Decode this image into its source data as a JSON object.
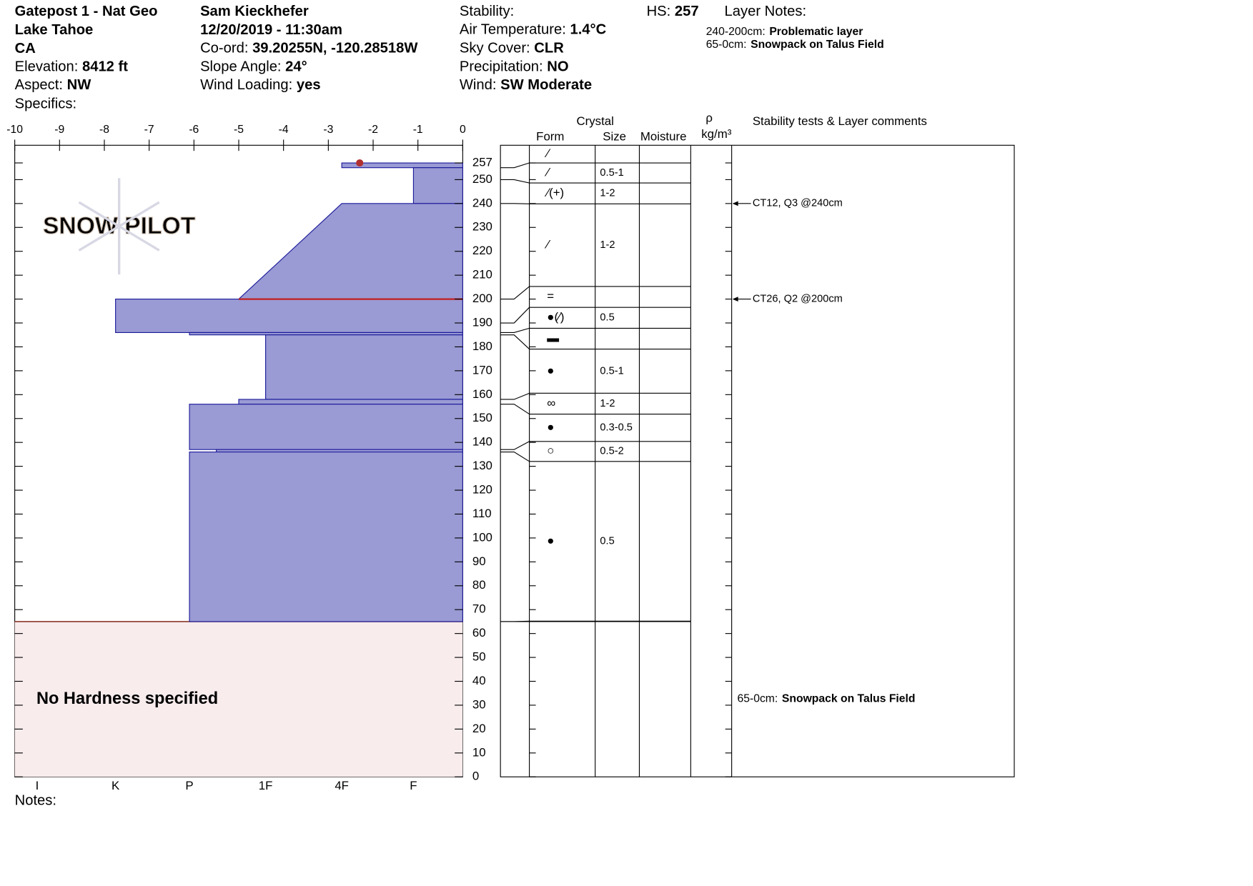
{
  "header": {
    "site": [
      "Gatepost 1 - Nat Geo",
      "Lake Tahoe",
      "CA"
    ],
    "fields_left": [
      {
        "label": "Elevation:",
        "value": "8412 ft"
      },
      {
        "label": "Aspect:",
        "value": "NW"
      }
    ],
    "specifics": "Specifics:",
    "observer": "Sam Kieckhefer",
    "datetime": "12/20/2019 - 11:30am",
    "fields_mid": [
      {
        "label": "Co-ord:",
        "value": "39.20255N, -120.28518W"
      },
      {
        "label": "Slope Angle:",
        "value": "24°"
      },
      {
        "label": "Wind Loading:",
        "value": "yes"
      }
    ],
    "stability": "Stability:",
    "fields_right": [
      {
        "label": "Air Temperature:",
        "value": "1.4°C"
      },
      {
        "label": "Sky Cover:",
        "value": "CLR"
      },
      {
        "label": "Precipitation:",
        "value": "NO"
      },
      {
        "label": "Wind:",
        "value": "SW Moderate"
      }
    ],
    "hs": {
      "label": "HS:",
      "value": "257"
    },
    "layer_notes_title": "Layer Notes:",
    "layer_notes": [
      {
        "label": "240-200cm:",
        "value": "Problematic layer"
      },
      {
        "label": "65-0cm:",
        "value": "Snowpack on Talus Field"
      }
    ]
  },
  "profile": {
    "logo": "SNOW PILOT",
    "temp_lim": [
      -10,
      0
    ],
    "temp_ticks": [
      -10,
      -9,
      -8,
      -7,
      -6,
      -5,
      -4,
      -3,
      -2,
      -1,
      0
    ],
    "hardness_ticks": [
      {
        "value": -9.5,
        "label": "I"
      },
      {
        "value": -7.75,
        "label": "K"
      },
      {
        "value": -6.1,
        "label": "P"
      },
      {
        "value": -4.4,
        "label": "1F"
      },
      {
        "value": -2.7,
        "label": "4F"
      },
      {
        "value": -1.1,
        "label": "F"
      }
    ],
    "depth_lim": [
      0,
      257
    ],
    "depth_ticks": [
      0,
      10,
      20,
      30,
      40,
      50,
      60,
      70,
      80,
      90,
      100,
      110,
      120,
      130,
      140,
      150,
      160,
      170,
      180,
      190,
      200,
      210,
      220,
      230,
      240,
      250,
      257
    ],
    "surface_temp": -2.3,
    "layers": [
      {
        "top": 257,
        "bottom": 255,
        "hardness_top": -2.7,
        "hardness_bottom": -2.7
      },
      {
        "top": 255,
        "bottom": 240,
        "hardness_top": -1.1,
        "hardness_bottom": -1.1
      },
      {
        "top": 240,
        "bottom": 200,
        "hardness_top": -2.7,
        "hardness_bottom": -5
      },
      {
        "top": 200,
        "bottom": 186,
        "hardness_top": -7.75,
        "hardness_bottom": -7.75
      },
      {
        "top": 186,
        "bottom": 185,
        "hardness_top": -6.1,
        "hardness_bottom": -6.1
      },
      {
        "top": 185,
        "bottom": 158,
        "hardness_top": -4.4,
        "hardness_bottom": -4.4
      },
      {
        "top": 158,
        "bottom": 156,
        "hardness_top": -5,
        "hardness_bottom": -5
      },
      {
        "top": 156,
        "bottom": 137,
        "hardness_top": -6.1,
        "hardness_bottom": -6.1
      },
      {
        "top": 137,
        "bottom": 136,
        "hardness_top": -5.5,
        "hardness_bottom": -5.5
      },
      {
        "top": 136,
        "bottom": 65,
        "hardness_top": -6.1,
        "hardness_bottom": -6.1
      }
    ],
    "no_hardness": {
      "top": 65,
      "bottom": 0,
      "label": "No Hardness specified"
    }
  },
  "table": {
    "headers": {
      "crystal": "Crystal",
      "form": "Form",
      "size": "Size",
      "moisture": "Moisture",
      "rho": "ρ",
      "density_unit": "kg/m³",
      "comments": "Stability tests & Layer comments"
    },
    "grain_layers": [
      {
        "top": 257,
        "bottom": 255,
        "form": "⁄",
        "size": ""
      },
      {
        "top": 255,
        "bottom": 250,
        "form": "⁄",
        "size": "0.5-1"
      },
      {
        "top": 250,
        "bottom": 240,
        "form": "⁄(+)",
        "size": "1-2"
      },
      {
        "top": 240,
        "bottom": 200,
        "form": "⁄",
        "size": "1-2"
      },
      {
        "top": 200,
        "bottom": 190,
        "form": "=",
        "size": ""
      },
      {
        "top": 190,
        "bottom": 186,
        "form": "●(⁄)",
        "size": "0.5"
      },
      {
        "top": 186,
        "bottom": 185,
        "form": "▬",
        "size": ""
      },
      {
        "top": 185,
        "bottom": 158,
        "form": "●",
        "size": "0.5-1"
      },
      {
        "top": 158,
        "bottom": 156,
        "form": "∞",
        "size": "1-2"
      },
      {
        "top": 156,
        "bottom": 137,
        "form": "●",
        "size": "0.3-0.5"
      },
      {
        "top": 137,
        "bottom": 136,
        "form": "○",
        "size": "0.5-2"
      },
      {
        "top": 136,
        "bottom": 65,
        "form": "●",
        "size": "0.5"
      }
    ],
    "tests": [
      {
        "depth": 240,
        "text": "CT12, Q3 @240cm"
      },
      {
        "depth": 200,
        "text": "CT26, Q2 @200cm"
      }
    ]
  },
  "notes": "Notes:"
}
